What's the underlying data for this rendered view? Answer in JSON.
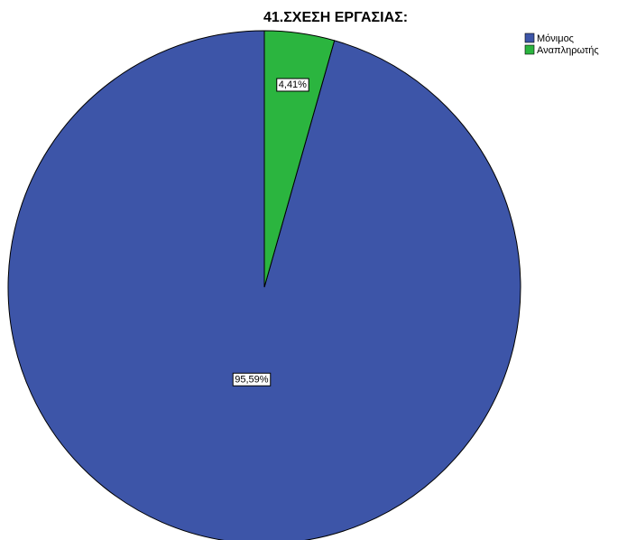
{
  "chart_data": {
    "type": "pie",
    "title": "41.ΣΧΕΣΗ ΕΡΓΑΣΙΑΣ:",
    "categories": [
      "Μόνιμος",
      "Αναπληρωτής"
    ],
    "values": [
      95.59,
      4.41
    ],
    "value_labels": [
      "95,59%",
      "4,41%"
    ],
    "colors": [
      "#3d55a8",
      "#2bb53f"
    ],
    "legend_position": "top-right",
    "start_angle": "12 o'clock",
    "direction": "counter-clockwise"
  }
}
